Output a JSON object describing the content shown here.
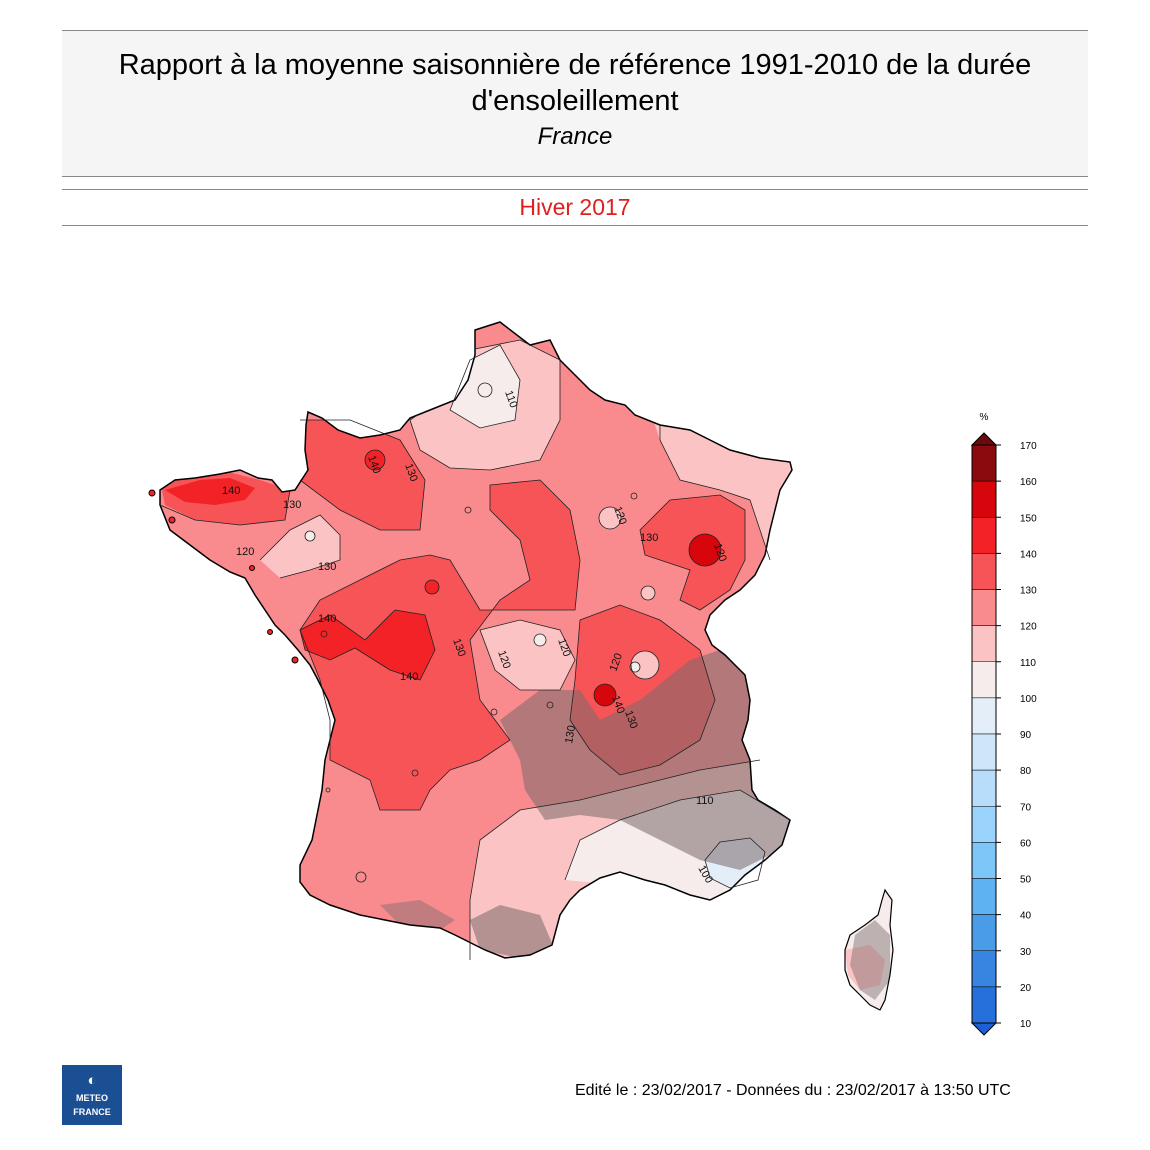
{
  "header": {
    "title": "Rapport à la moyenne saisonnière de référence 1991-2010 de la durée d'ensoleillement",
    "region": "France",
    "season": "Hiver 2017"
  },
  "legend": {
    "unit": "%",
    "ticks": [
      "170",
      "160",
      "150",
      "140",
      "130",
      "120",
      "110",
      "100",
      "90",
      "80",
      "70",
      "60",
      "50",
      "40",
      "30",
      "20",
      "10"
    ],
    "colors_top_to_bottom": [
      "#8b0a0e",
      "#d6060c",
      "#f22226",
      "#f75458",
      "#f98b8e",
      "#fbc3c4",
      "#f6ecec",
      "#e3eef8",
      "#cfe6f9",
      "#b7ddfb",
      "#9ad3fb",
      "#7cc6f8",
      "#5eb2f1",
      "#4a9be8",
      "#3785e0",
      "#2570da"
    ]
  },
  "map": {
    "contour_labels": [
      "110",
      "130",
      "140",
      "130",
      "120",
      "140",
      "140",
      "130",
      "130",
      "120",
      "120",
      "120",
      "130",
      "140",
      "120",
      "140",
      "130",
      "130",
      "120",
      "110",
      "100",
      "110"
    ]
  },
  "footer": {
    "edited": "Edité le : 23/02/2017 - Données du : 23/02/2017 à 13:50 UTC",
    "logo_line1": "METEO",
    "logo_line2": "FRANCE"
  }
}
